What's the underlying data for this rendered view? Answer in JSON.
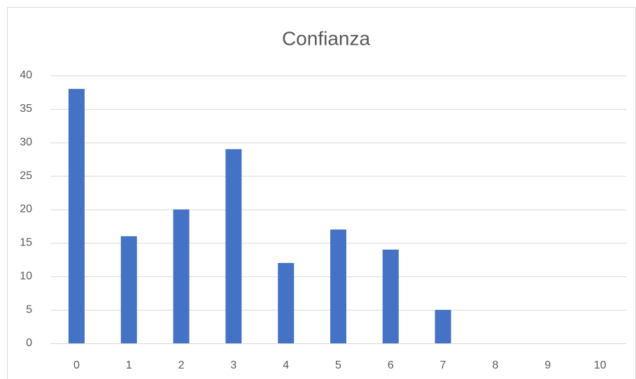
{
  "chart_data": {
    "type": "bar",
    "title": "Confianza",
    "categories": [
      "0",
      "1",
      "2",
      "3",
      "4",
      "5",
      "6",
      "7",
      "8",
      "9",
      "10"
    ],
    "values": [
      38,
      16,
      20,
      29,
      12,
      17,
      14,
      5,
      0,
      0,
      0
    ],
    "color": "#4472c4",
    "ylim": [
      0,
      40
    ],
    "yticks": [
      0,
      5,
      10,
      15,
      20,
      25,
      30,
      35,
      40
    ],
    "grid": true
  }
}
